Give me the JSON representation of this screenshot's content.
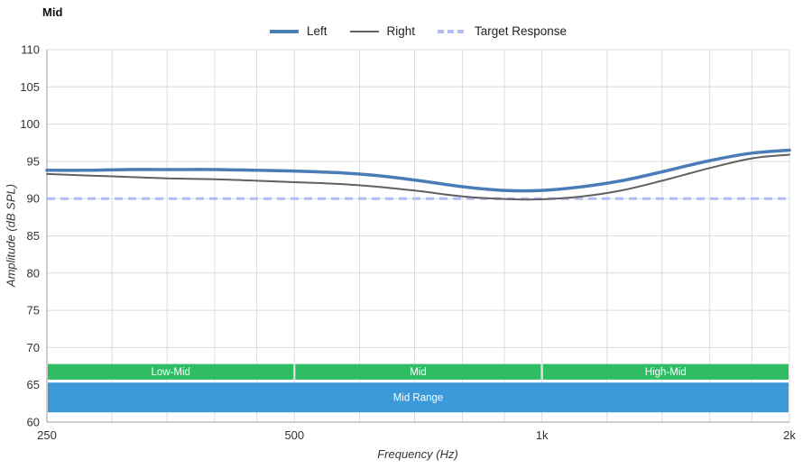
{
  "title": "Mid",
  "legend": [
    {
      "label": "Left",
      "color": "#4a7db8",
      "width": 4,
      "dash": ""
    },
    {
      "label": "Right",
      "color": "#606060",
      "width": 2,
      "dash": ""
    },
    {
      "label": "Target Response",
      "color": "#b4baf3",
      "width": 4,
      "dash": "7 4"
    }
  ],
  "chart_data": {
    "type": "line",
    "title": "Mid",
    "xlabel": "Frequency (Hz)",
    "ylabel": "Amplitude (dB SPL)",
    "x_scale": "log",
    "xlim": [
      250,
      2000
    ],
    "ylim": [
      60,
      110
    ],
    "grid": true,
    "legend_position": "top-center",
    "x_ticks": [
      {
        "value": 250,
        "label": "250"
      },
      {
        "value": 500,
        "label": "500"
      },
      {
        "value": 1000,
        "label": "1k"
      },
      {
        "value": 2000,
        "label": "2k"
      }
    ],
    "y_ticks": [
      60,
      65,
      70,
      75,
      80,
      85,
      90,
      95,
      100,
      105,
      110
    ],
    "x_gridlines": [
      250,
      300,
      350,
      400,
      450,
      500,
      600,
      700,
      800,
      900,
      1000,
      1200,
      1400,
      1600,
      1800,
      2000
    ],
    "target_response": {
      "label": "Target Response",
      "value": 90,
      "color": "#b4baf3"
    },
    "series": [
      {
        "name": "Left",
        "color": "#4a7db8",
        "width": 3.5,
        "x": [
          250,
          280,
          315,
          355,
          400,
          450,
          500,
          560,
          630,
          710,
          800,
          900,
          1000,
          1120,
          1250,
          1400,
          1600,
          1800,
          2000
        ],
        "y": [
          93.8,
          93.8,
          93.9,
          93.9,
          93.9,
          93.8,
          93.7,
          93.5,
          93.1,
          92.4,
          91.6,
          91.1,
          91.1,
          91.6,
          92.4,
          93.6,
          95.1,
          96.1,
          96.5
        ]
      },
      {
        "name": "Right",
        "color": "#606060",
        "width": 2,
        "x": [
          250,
          280,
          315,
          355,
          400,
          450,
          500,
          560,
          630,
          710,
          800,
          900,
          1000,
          1120,
          1250,
          1400,
          1600,
          1800,
          2000
        ],
        "y": [
          93.3,
          93.1,
          92.9,
          92.7,
          92.6,
          92.4,
          92.2,
          92.0,
          91.6,
          91.0,
          90.3,
          89.95,
          89.9,
          90.3,
          91.1,
          92.4,
          94.1,
          95.4,
          95.9
        ]
      }
    ],
    "bands": [
      {
        "label": "Low-Mid",
        "x1": 250,
        "x2": 500,
        "y1": 65.7,
        "y2": 67.8,
        "color": "#2fbd64",
        "text_color": "#ffffff"
      },
      {
        "label": "Mid",
        "x1": 500,
        "x2": 1000,
        "y1": 65.7,
        "y2": 67.8,
        "color": "#2fbd64",
        "text_color": "#ffffff"
      },
      {
        "label": "High-Mid",
        "x1": 1000,
        "x2": 2000,
        "y1": 65.7,
        "y2": 67.8,
        "color": "#2fbd64",
        "text_color": "#ffffff"
      },
      {
        "label": "Mid Range",
        "x1": 250,
        "x2": 2000,
        "y1": 61.3,
        "y2": 65.3,
        "color": "#3b99d9",
        "text_color": "#ffffff"
      }
    ]
  }
}
